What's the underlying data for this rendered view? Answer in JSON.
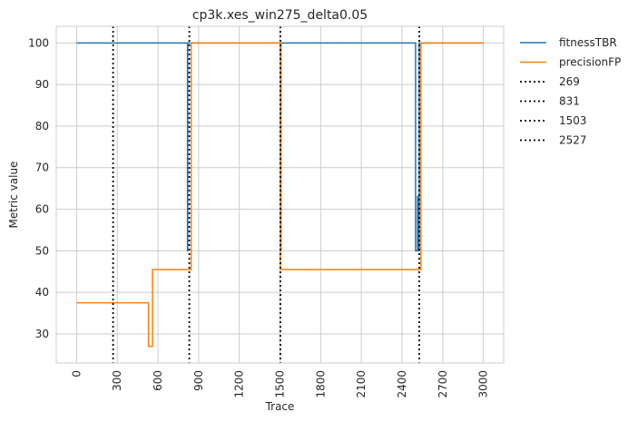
{
  "chart_data": {
    "type": "line",
    "title": "cp3k.xes_win275_delta0.05",
    "xlabel": "Trace",
    "ylabel": "Metric value",
    "xlim": [
      -150,
      3150
    ],
    "ylim": [
      23,
      104
    ],
    "x_ticks": [
      0,
      300,
      600,
      900,
      1200,
      1500,
      1800,
      2100,
      2400,
      2700,
      3000
    ],
    "y_ticks": [
      30,
      40,
      50,
      60,
      70,
      80,
      90,
      100
    ],
    "grid": true,
    "legend_position": "outside-right",
    "series": [
      {
        "name": "fitnessTBR",
        "color": "#1f77b4",
        "points": [
          [
            0,
            100
          ],
          [
            818,
            100
          ],
          [
            818,
            50
          ],
          [
            820,
            50
          ],
          [
            820,
            100
          ],
          [
            1505,
            100
          ],
          [
            1505,
            50
          ],
          [
            1507,
            50
          ],
          [
            1507,
            100
          ],
          [
            2500,
            100
          ],
          [
            2500,
            50
          ],
          [
            2515,
            50
          ],
          [
            2515,
            63
          ],
          [
            2520,
            63
          ],
          [
            2520,
            50
          ],
          [
            2527,
            50
          ],
          [
            2527,
            100
          ],
          [
            3000,
            100
          ]
        ]
      },
      {
        "name": "precisionFP",
        "color": "#ff7f0e",
        "points": [
          [
            0,
            37.5
          ],
          [
            530,
            37.5
          ],
          [
            530,
            27
          ],
          [
            560,
            27
          ],
          [
            560,
            45.5
          ],
          [
            845,
            45.5
          ],
          [
            845,
            100
          ],
          [
            1503,
            100
          ],
          [
            1503,
            45.5
          ],
          [
            2540,
            45.5
          ],
          [
            2540,
            100
          ],
          [
            3000,
            100
          ]
        ]
      }
    ],
    "vlines": [
      {
        "name": "269",
        "x": 269,
        "color": "#000000",
        "style": "dotted"
      },
      {
        "name": "831",
        "x": 831,
        "color": "#000000",
        "style": "dotted"
      },
      {
        "name": "1503",
        "x": 1503,
        "color": "#000000",
        "style": "dotted"
      },
      {
        "name": "2527",
        "x": 2527,
        "color": "#000000",
        "style": "dotted"
      }
    ]
  }
}
